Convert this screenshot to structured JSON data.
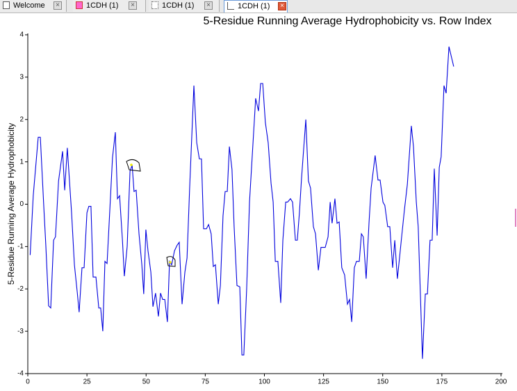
{
  "tabs": [
    "Welcome",
    "1CDH (1)",
    "1CDH (1)",
    "1CDH (1)"
  ],
  "chart_data": {
    "type": "line",
    "title": "5-Residue Running Average Hydrophobicity vs. Row Index",
    "y_label": "5-Residue Running Average Hydrophobicity",
    "xlim": [
      0,
      200
    ],
    "xticks": [
      0,
      25,
      50,
      75,
      100,
      125,
      150,
      175,
      200
    ],
    "ylim": [
      -4,
      4
    ],
    "yticks": [
      -4,
      -3,
      -2,
      -1,
      0,
      1,
      2,
      3,
      4
    ],
    "series": [
      {
        "color": "#0000dd",
        "x": [
          1,
          2.3,
          4.4,
          5.3,
          6.8,
          7.6,
          8.8,
          9.7,
          10.9,
          11.7,
          13,
          14.7,
          15.6,
          16.7,
          18.5,
          19.7,
          20.9,
          21.7,
          22.9,
          23.8,
          25,
          25.8,
          26.7,
          27.6,
          28.8,
          30,
          30.8,
          31.7,
          32.6,
          33.5,
          34.7,
          35.8,
          37,
          37.9,
          38.8,
          40,
          40.8,
          42,
          43.2,
          44.1,
          44.9,
          45.8,
          47,
          48.2,
          49,
          49.9,
          50.8,
          52,
          52.9,
          54,
          55.2,
          56.1,
          57,
          57.9,
          59,
          59.9,
          60.8,
          62,
          63.1,
          64,
          65.2,
          66.4,
          67.3,
          68.4,
          70.2,
          71.4,
          72.5,
          73.4,
          74.3,
          75.5,
          76.4,
          77.5,
          78.4,
          79.3,
          80.5,
          81.4,
          82.5,
          83.4,
          84.3,
          85.2,
          86.3,
          87.2,
          88.4,
          89.6,
          90.5,
          91.3,
          92.5,
          93.7,
          96.3,
          97.5,
          98.4,
          99.3,
          100.4,
          101.6,
          102.8,
          103.7,
          104.6,
          105.7,
          106.9,
          107.8,
          109,
          109.8,
          111,
          111.9,
          113.1,
          113.9,
          114.8,
          115.7,
          117.5,
          118.6,
          119.5,
          120.7,
          121.6,
          122.8,
          123.9,
          125.7,
          126.9,
          127.8,
          128.6,
          129.8,
          130.7,
          131.6,
          132.7,
          133.9,
          135.1,
          136,
          136.9,
          138,
          138.9,
          140.1,
          141,
          141.8,
          143,
          144.2,
          145.1,
          146.8,
          148,
          148.9,
          150.1,
          150.9,
          152.1,
          153,
          154.2,
          155.1,
          156.2,
          157.1,
          158,
          159.2,
          160.4,
          162.1,
          163,
          164.2,
          165,
          166.8,
          168,
          168.9,
          170,
          170.9,
          171.8,
          173,
          173.9,
          174.7,
          175.9,
          176.8,
          178,
          180
        ],
        "values": [
          -1.2,
          0.2,
          1.58,
          1.58,
          -0.1,
          -0.95,
          -2.4,
          -2.45,
          -0.85,
          -0.77,
          0.55,
          1.25,
          0.33,
          1.33,
          -0.2,
          -1.43,
          -2.08,
          -2.55,
          -1.5,
          -1.5,
          -0.2,
          -0.05,
          -0.05,
          -1.72,
          -1.72,
          -2.45,
          -2.45,
          -3.0,
          -1.35,
          -1.4,
          -0.1,
          1.1,
          1.7,
          0.13,
          0.2,
          -0.85,
          -1.7,
          -1.0,
          0.78,
          0.92,
          0.3,
          0.33,
          -0.7,
          -1.43,
          -2.12,
          -0.6,
          -1.1,
          -1.6,
          -2.42,
          -2.1,
          -2.65,
          -2.1,
          -2.25,
          -2.25,
          -2.78,
          -1.35,
          -1.43,
          -1.1,
          -0.97,
          -0.9,
          -2.36,
          -1.6,
          -1.27,
          0.38,
          2.8,
          1.45,
          1.07,
          1.07,
          -0.58,
          -0.58,
          -0.48,
          -0.7,
          -1.47,
          -1.43,
          -2.36,
          -1.92,
          -0.28,
          0.3,
          0.3,
          1.36,
          0.82,
          -0.53,
          -1.92,
          -1.95,
          -3.56,
          -3.56,
          -2.0,
          0.05,
          2.5,
          2.2,
          2.85,
          2.85,
          1.93,
          1.45,
          0.5,
          0.05,
          -1.35,
          -1.35,
          -2.33,
          -0.85,
          0.05,
          0.05,
          0.13,
          0.05,
          -0.85,
          -0.85,
          -0.2,
          0.62,
          2.0,
          0.55,
          0.38,
          -0.53,
          -0.7,
          -1.56,
          -1.02,
          -1.02,
          -0.77,
          0.05,
          -0.45,
          0.13,
          -0.45,
          -0.42,
          -1.5,
          -1.67,
          -2.36,
          -2.25,
          -2.78,
          -1.5,
          -1.35,
          -1.35,
          -0.7,
          -0.77,
          -1.76,
          -0.45,
          0.38,
          1.15,
          0.57,
          0.57,
          0.05,
          -0.03,
          -0.53,
          -0.53,
          -1.5,
          -0.85,
          -1.76,
          -1.27,
          -0.77,
          -0.12,
          0.46,
          1.85,
          1.36,
          0.05,
          -0.53,
          -3.65,
          -2.12,
          -2.12,
          -0.85,
          -0.85,
          0.84,
          -0.74,
          0.87,
          1.12,
          2.8,
          2.62,
          3.72,
          3.25
        ]
      }
    ]
  }
}
